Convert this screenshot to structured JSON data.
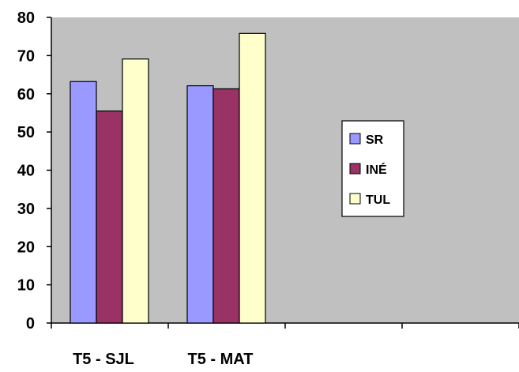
{
  "chart_data": {
    "type": "bar",
    "categories": [
      "T5 - SJL",
      "T5 - MAT",
      "",
      ""
    ],
    "series": [
      {
        "name": "SR",
        "values": [
          63.2,
          62.1,
          null,
          null
        ],
        "color": "#9999ff"
      },
      {
        "name": "INÉ",
        "values": [
          55.5,
          61.3,
          null,
          null
        ],
        "color": "#993366"
      },
      {
        "name": "TUL",
        "values": [
          69.1,
          75.8,
          null,
          null
        ],
        "color": "#ffffcc"
      }
    ],
    "title": "",
    "xlabel": "",
    "ylabel": "",
    "ylim": [
      0,
      80
    ],
    "yticks": [
      0,
      10,
      20,
      30,
      40,
      50,
      60,
      70,
      80
    ],
    "grid": false,
    "plot_background": "#c0c0c0",
    "legend_position": "right"
  }
}
